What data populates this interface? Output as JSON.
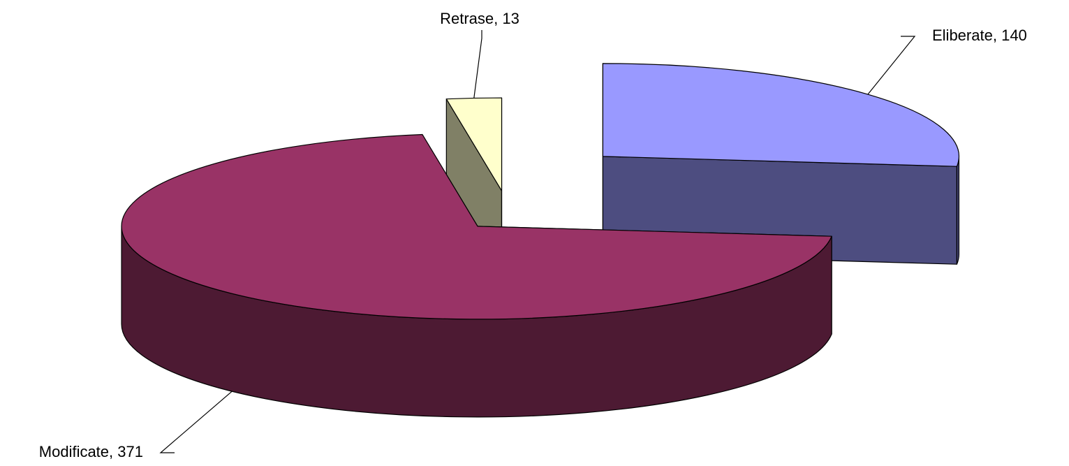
{
  "chart_data": {
    "type": "pie3d",
    "categories": [
      "Eliberate",
      "Modificate",
      "Retrase"
    ],
    "values": [
      140,
      371,
      13
    ],
    "colors": [
      "#9999ff",
      "#993366",
      "#ffffcc"
    ]
  }
}
